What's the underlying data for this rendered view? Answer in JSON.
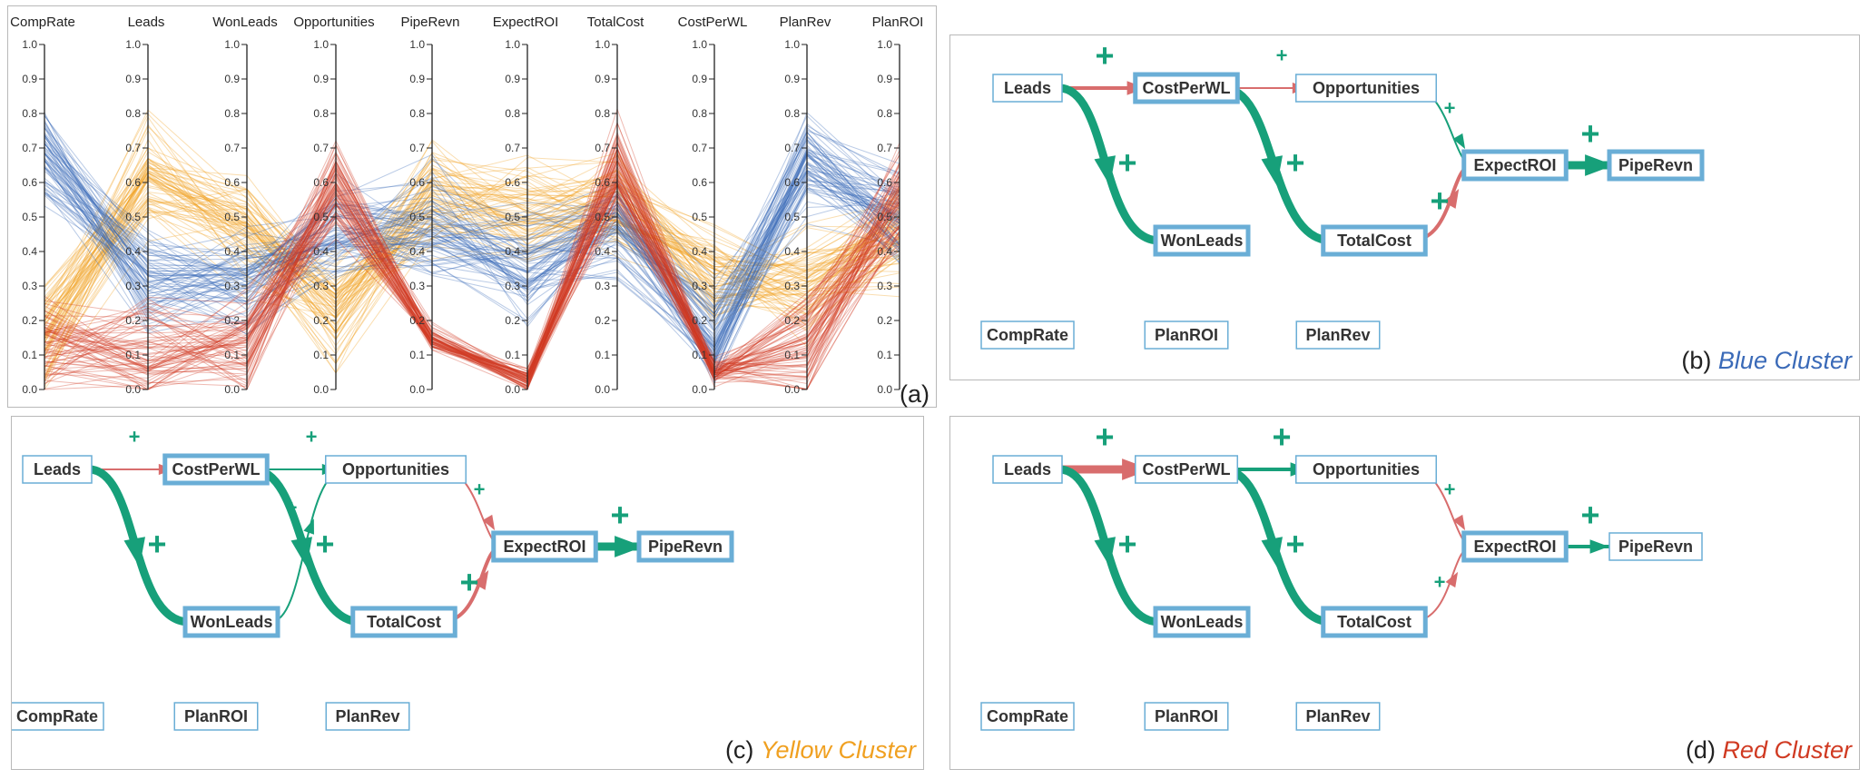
{
  "parallel_coordinates": {
    "panel_label": "(a)",
    "axes": [
      "CompRate",
      "Leads",
      "WonLeads",
      "Opportunities",
      "PipeRevn",
      "ExpectROI",
      "TotalCost",
      "CostPerWL",
      "PlanRev",
      "PlanROI"
    ],
    "ticks": [
      "0.0",
      "0.1",
      "0.2",
      "0.3",
      "0.4",
      "0.5",
      "0.6",
      "0.7",
      "0.8",
      "0.9",
      "1.0"
    ],
    "clusters": [
      {
        "key": "yellow",
        "color": "#f0a020",
        "profile": [
          0.15,
          0.62,
          0.45,
          0.22,
          0.55,
          0.5,
          0.55,
          0.33,
          0.3,
          0.45
        ]
      },
      {
        "key": "blue",
        "color": "#3a6ab8",
        "profile": [
          0.68,
          0.32,
          0.33,
          0.44,
          0.48,
          0.35,
          0.48,
          0.15,
          0.65,
          0.5
        ]
      },
      {
        "key": "red",
        "color": "#d03a22",
        "profile": [
          0.12,
          0.1,
          0.12,
          0.58,
          0.15,
          0.03,
          0.65,
          0.05,
          0.12,
          0.55
        ]
      }
    ]
  },
  "panels": [
    {
      "caption_prefix": "(b) ",
      "caption_cluster": "Blue Cluster",
      "caption_color": "#3a6ab8",
      "nodes": {
        "Leads": "Leads",
        "CostPerWL": "CostPerWL",
        "Opportunities": "Opportunities",
        "ExpectROI": "ExpectROI",
        "PipeRevn": "PipeRevn",
        "WonLeads": "WonLeads",
        "TotalCost": "TotalCost"
      },
      "isolated": [
        "CompRate",
        "PlanROI",
        "PlanRev"
      ],
      "highlighted": [
        "CostPerWL",
        "ExpectROI",
        "PipeRevn",
        "WonLeads",
        "TotalCost"
      ],
      "edges": [
        {
          "from": "Leads",
          "to": "CostPerWL",
          "color": "red",
          "weight": "medium",
          "sign": "+"
        },
        {
          "from": "Leads",
          "to": "WonLeads",
          "color": "green",
          "weight": "thick",
          "sign": "+"
        },
        {
          "from": "CostPerWL",
          "to": "Opportunities",
          "color": "red",
          "weight": "thin",
          "sign": "+"
        },
        {
          "from": "CostPerWL",
          "to": "TotalCost",
          "color": "green",
          "weight": "thick",
          "sign": "+"
        },
        {
          "from": "Opportunities",
          "to": "ExpectROI",
          "color": "green",
          "weight": "thin",
          "sign": "+"
        },
        {
          "from": "TotalCost",
          "to": "ExpectROI",
          "color": "red",
          "weight": "medium",
          "sign": "+"
        },
        {
          "from": "ExpectROI",
          "to": "PipeRevn",
          "color": "green",
          "weight": "thick",
          "sign": "+"
        }
      ]
    },
    {
      "caption_prefix": "(c) ",
      "caption_cluster": "Yellow Cluster",
      "caption_color": "#f0a020",
      "nodes": {
        "Leads": "Leads",
        "CostPerWL": "CostPerWL",
        "Opportunities": "Opportunities",
        "ExpectROI": "ExpectROI",
        "PipeRevn": "PipeRevn",
        "WonLeads": "WonLeads",
        "TotalCost": "TotalCost"
      },
      "isolated": [
        "CompRate",
        "PlanROI",
        "PlanRev"
      ],
      "highlighted": [
        "CostPerWL",
        "ExpectROI",
        "PipeRevn",
        "WonLeads",
        "TotalCost"
      ],
      "edges": [
        {
          "from": "Leads",
          "to": "CostPerWL",
          "color": "red",
          "weight": "thin",
          "sign": "+"
        },
        {
          "from": "Leads",
          "to": "WonLeads",
          "color": "green",
          "weight": "thick",
          "sign": "+"
        },
        {
          "from": "CostPerWL",
          "to": "Opportunities",
          "color": "green",
          "weight": "thin",
          "sign": "+"
        },
        {
          "from": "CostPerWL",
          "to": "TotalCost",
          "color": "green",
          "weight": "thick",
          "sign": "+"
        },
        {
          "from": "WonLeads",
          "to": "Opportunities",
          "color": "green",
          "weight": "thin",
          "sign": "+"
        },
        {
          "from": "Opportunities",
          "to": "ExpectROI",
          "color": "red",
          "weight": "thin",
          "sign": "+"
        },
        {
          "from": "TotalCost",
          "to": "ExpectROI",
          "color": "red",
          "weight": "medium",
          "sign": "+"
        },
        {
          "from": "ExpectROI",
          "to": "PipeRevn",
          "color": "green",
          "weight": "thick",
          "sign": "+"
        }
      ]
    },
    {
      "caption_prefix": "(d) ",
      "caption_cluster": "Red Cluster",
      "caption_color": "#d03a22",
      "nodes": {
        "Leads": "Leads",
        "CostPerWL": "CostPerWL",
        "Opportunities": "Opportunities",
        "ExpectROI": "ExpectROI",
        "PipeRevn": "PipeRevn",
        "WonLeads": "WonLeads",
        "TotalCost": "TotalCost"
      },
      "isolated": [
        "CompRate",
        "PlanROI",
        "PlanRev"
      ],
      "highlighted": [
        "ExpectROI",
        "WonLeads",
        "TotalCost"
      ],
      "edges": [
        {
          "from": "Leads",
          "to": "CostPerWL",
          "color": "red",
          "weight": "thick",
          "sign": "+"
        },
        {
          "from": "Leads",
          "to": "WonLeads",
          "color": "green",
          "weight": "thick",
          "sign": "+"
        },
        {
          "from": "CostPerWL",
          "to": "Opportunities",
          "color": "green",
          "weight": "medium",
          "sign": "+"
        },
        {
          "from": "CostPerWL",
          "to": "TotalCost",
          "color": "green",
          "weight": "thick",
          "sign": "+"
        },
        {
          "from": "Opportunities",
          "to": "ExpectROI",
          "color": "red",
          "weight": "thin",
          "sign": "+"
        },
        {
          "from": "TotalCost",
          "to": "ExpectROI",
          "color": "red",
          "weight": "thin",
          "sign": "+"
        },
        {
          "from": "ExpectROI",
          "to": "PipeRevn",
          "color": "green",
          "weight": "medium",
          "sign": "+"
        }
      ]
    }
  ],
  "colors": {
    "edge_green": "#17a07a",
    "edge_red": "#d86d6d",
    "node_border": "#6aaed6",
    "highlight_border": "#6aaed6"
  }
}
